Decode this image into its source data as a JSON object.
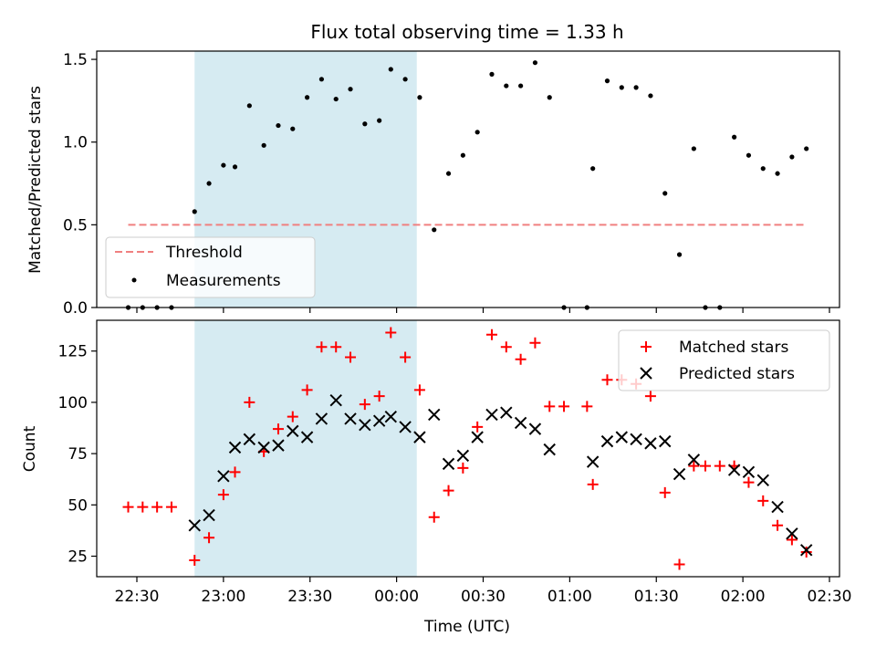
{
  "chart_data": {
    "title": "Flux total observing time = 1.33 h",
    "xlabel": "Time (UTC)",
    "shaded_interval": [
      "22:50",
      "00:07"
    ],
    "x_ticks": [
      "22:30",
      "23:00",
      "23:30",
      "00:00",
      "00:30",
      "01:00",
      "01:30",
      "02:00",
      "02:30"
    ],
    "colors": {
      "shade": "#add8e6",
      "threshold": "#f08080",
      "matched": "#ff0000",
      "predicted": "#000000",
      "measurement": "#000000"
    },
    "top": {
      "type": "scatter",
      "ylabel": "Matched/Predicted stars",
      "ylim": [
        0,
        1.55
      ],
      "yticks": [
        "0.0",
        "0.5",
        "1.0",
        "1.5"
      ],
      "legend_position": "lower-left",
      "threshold": {
        "name": "Threshold",
        "value": 0.5,
        "x_range": [
          "22:27",
          "02:22"
        ]
      },
      "series": {
        "name": "Measurements",
        "points": [
          [
            "22:27",
            0.0
          ],
          [
            "22:32",
            0.0
          ],
          [
            "22:37",
            0.0
          ],
          [
            "22:42",
            0.0
          ],
          [
            "22:50",
            0.58
          ],
          [
            "22:55",
            0.75
          ],
          [
            "23:00",
            0.86
          ],
          [
            "23:04",
            0.85
          ],
          [
            "23:09",
            1.22
          ],
          [
            "23:14",
            0.98
          ],
          [
            "23:19",
            1.1
          ],
          [
            "23:24",
            1.08
          ],
          [
            "23:29",
            1.27
          ],
          [
            "23:34",
            1.38
          ],
          [
            "23:39",
            1.26
          ],
          [
            "23:44",
            1.32
          ],
          [
            "23:49",
            1.11
          ],
          [
            "23:54",
            1.13
          ],
          [
            "23:58",
            1.44
          ],
          [
            "00:03",
            1.38
          ],
          [
            "00:08",
            1.27
          ],
          [
            "00:13",
            0.47
          ],
          [
            "00:18",
            0.81
          ],
          [
            "00:23",
            0.92
          ],
          [
            "00:28",
            1.06
          ],
          [
            "00:33",
            1.41
          ],
          [
            "00:38",
            1.34
          ],
          [
            "00:43",
            1.34
          ],
          [
            "00:48",
            1.48
          ],
          [
            "00:53",
            1.27
          ],
          [
            "00:58",
            0.0
          ],
          [
            "01:06",
            0.0
          ],
          [
            "01:08",
            0.84
          ],
          [
            "01:13",
            1.37
          ],
          [
            "01:18",
            1.33
          ],
          [
            "01:23",
            1.33
          ],
          [
            "01:28",
            1.28
          ],
          [
            "01:33",
            0.69
          ],
          [
            "01:38",
            0.32
          ],
          [
            "01:43",
            0.96
          ],
          [
            "01:47",
            0.0
          ],
          [
            "01:52",
            0.0
          ],
          [
            "01:57",
            1.03
          ],
          [
            "02:02",
            0.92
          ],
          [
            "02:07",
            0.84
          ],
          [
            "02:12",
            0.81
          ],
          [
            "02:17",
            0.91
          ],
          [
            "02:22",
            0.96
          ]
        ]
      }
    },
    "bottom": {
      "type": "scatter",
      "ylabel": "Count",
      "ylim": [
        15,
        140
      ],
      "yticks": [
        "25",
        "50",
        "75",
        "100",
        "125"
      ],
      "legend_position": "upper-right",
      "series": [
        {
          "name": "Matched stars",
          "marker": "plus",
          "points": [
            [
              "22:27",
              49
            ],
            [
              "22:32",
              49
            ],
            [
              "22:37",
              49
            ],
            [
              "22:42",
              49
            ],
            [
              "22:50",
              23
            ],
            [
              "22:55",
              34
            ],
            [
              "23:00",
              55
            ],
            [
              "23:04",
              66
            ],
            [
              "23:09",
              100
            ],
            [
              "23:14",
              76
            ],
            [
              "23:19",
              87
            ],
            [
              "23:24",
              93
            ],
            [
              "23:29",
              106
            ],
            [
              "23:34",
              127
            ],
            [
              "23:39",
              127
            ],
            [
              "23:44",
              122
            ],
            [
              "23:49",
              99
            ],
            [
              "23:54",
              103
            ],
            [
              "23:58",
              134
            ],
            [
              "00:03",
              122
            ],
            [
              "00:08",
              106
            ],
            [
              "00:13",
              44
            ],
            [
              "00:18",
              57
            ],
            [
              "00:23",
              68
            ],
            [
              "00:28",
              88
            ],
            [
              "00:33",
              133
            ],
            [
              "00:38",
              127
            ],
            [
              "00:43",
              121
            ],
            [
              "00:48",
              129
            ],
            [
              "00:53",
              98
            ],
            [
              "00:58",
              98
            ],
            [
              "01:06",
              98
            ],
            [
              "01:08",
              60
            ],
            [
              "01:13",
              111
            ],
            [
              "01:18",
              111
            ],
            [
              "01:23",
              109
            ],
            [
              "01:28",
              103
            ],
            [
              "01:33",
              56
            ],
            [
              "01:38",
              21
            ],
            [
              "01:43",
              69
            ],
            [
              "01:47",
              69
            ],
            [
              "01:52",
              69
            ],
            [
              "01:57",
              69
            ],
            [
              "02:02",
              61
            ],
            [
              "02:07",
              52
            ],
            [
              "02:12",
              40
            ],
            [
              "02:17",
              33
            ],
            [
              "02:22",
              27
            ]
          ]
        },
        {
          "name": "Predicted stars",
          "marker": "x",
          "points": [
            [
              "22:50",
              40
            ],
            [
              "22:55",
              45
            ],
            [
              "23:00",
              64
            ],
            [
              "23:04",
              78
            ],
            [
              "23:09",
              82
            ],
            [
              "23:14",
              78
            ],
            [
              "23:19",
              79
            ],
            [
              "23:24",
              86
            ],
            [
              "23:29",
              83
            ],
            [
              "23:34",
              92
            ],
            [
              "23:39",
              101
            ],
            [
              "23:44",
              92
            ],
            [
              "23:49",
              89
            ],
            [
              "23:54",
              91
            ],
            [
              "23:58",
              93
            ],
            [
              "00:03",
              88
            ],
            [
              "00:08",
              83
            ],
            [
              "00:13",
              94
            ],
            [
              "00:18",
              70
            ],
            [
              "00:23",
              74
            ],
            [
              "00:28",
              83
            ],
            [
              "00:33",
              94
            ],
            [
              "00:38",
              95
            ],
            [
              "00:43",
              90
            ],
            [
              "00:48",
              87
            ],
            [
              "00:53",
              77
            ],
            [
              "01:08",
              71
            ],
            [
              "01:13",
              81
            ],
            [
              "01:18",
              83
            ],
            [
              "01:23",
              82
            ],
            [
              "01:28",
              80
            ],
            [
              "01:33",
              81
            ],
            [
              "01:38",
              65
            ],
            [
              "01:43",
              72
            ],
            [
              "01:57",
              67
            ],
            [
              "02:02",
              66
            ],
            [
              "02:07",
              62
            ],
            [
              "02:12",
              49
            ],
            [
              "02:17",
              36
            ],
            [
              "02:22",
              28
            ]
          ]
        }
      ]
    }
  }
}
